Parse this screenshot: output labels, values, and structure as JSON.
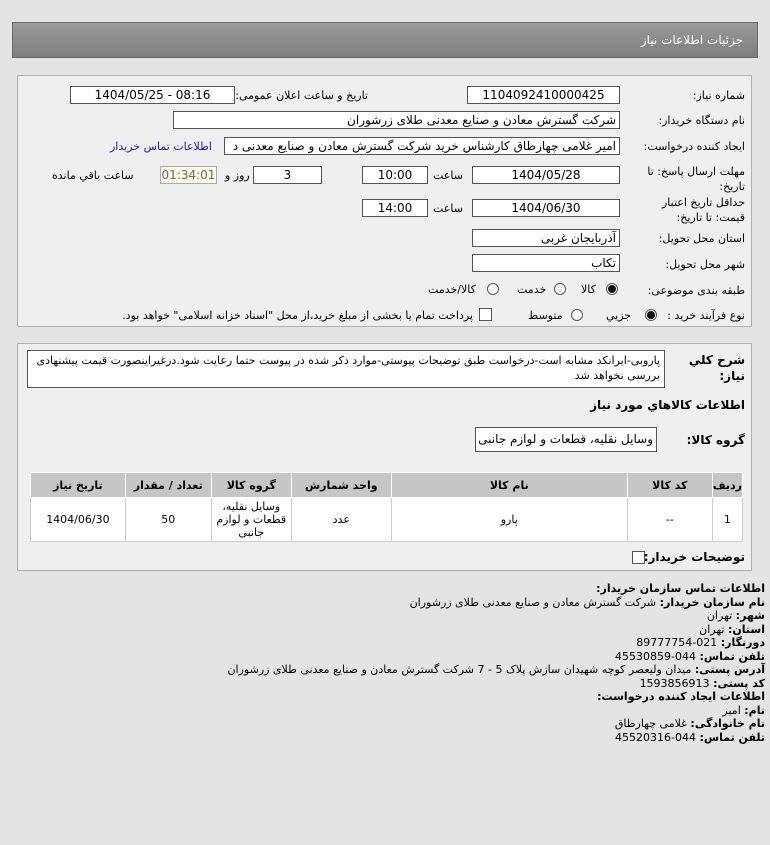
{
  "header": {
    "title": "جزئیات اطلاعات نیاز"
  },
  "form": {
    "need_number_label": "شماره نیاز:",
    "need_number": "1104092410000425",
    "announce_label": "تاریخ و ساعت اعلان عمومی:",
    "announce_value": "1404/05/25 - 08:16",
    "buyer_org_label": "نام دستگاه خریدار:",
    "buyer_org": "شرکت گسترش معادن و صنایع معدنی طلای زرشوران",
    "creator_label": "ایجاد کننده درخواست:",
    "creator": "امیر  غلامی چهارطاق کارشناس خرید شرکت گسترش معادن و صنایع معدنی د",
    "contact_link": "اطلاعات تماس خریدار",
    "deadline_label": "مهلت ارسال پاسخ: تا تاریخ:",
    "deadline_date": "1404/05/28",
    "time_label": "ساعت",
    "deadline_time": "10:00",
    "days": "3",
    "days_label": "روز و",
    "remaining": "01:34:01",
    "remaining_label": "ساعت باقي مانده",
    "validity_label": "حداقل تاریخ اعتبار قیمت: تا تاریخ:",
    "validity_date": "1404/06/30",
    "validity_time": "14:00",
    "province_label": "استان محل تحویل:",
    "province": "آذربایجان غربی",
    "city_label": "شهر محل تحویل:",
    "city": "تکاب",
    "category_label": "طبقه بندی موضوعی:",
    "category_options": [
      "کالا",
      "خدمت",
      "کالا/خدمت"
    ],
    "category_selected": "کالا",
    "process_label": "نوع فرآیند خرید :",
    "process_options": [
      "جزیي",
      "متوسط"
    ],
    "process_selected": "جزیي",
    "treasury_text": "پرداخت تمام یا بخشی از مبلغ خرید،از محل \"اسناد خزانه اسلامی\" خواهد بود."
  },
  "details": {
    "desc_label": "شرح کلي نیاز:",
    "desc": "پاروبی-ایرانکد مشابه است-درخواست طبق توضیحات پیوستی-موارد ذکر شده در پیوست حتما رعایت شود.درغیراینصورت قیمت پیشنهادی بررسی نخواهد شد",
    "goods_title": "اطلاعات کالاهاي مورد نیاز",
    "group_label": "گروه کالا:",
    "group": "وسایل نقلیه، قطعات و لوازم جانبی",
    "table": {
      "headers": [
        "ردیف",
        "کد کالا",
        "نام کالا",
        "واحد شمارش",
        "گروه کالا",
        "تعداد / مقدار",
        "تاریخ نیاز"
      ],
      "rows": [
        [
          "1",
          "--",
          "پارو",
          "عدد",
          "وسایل نقلیه، قطعات و لوازم جانبی",
          "50",
          "1404/06/30"
        ]
      ]
    },
    "buyer_notes_label": "توضیحات خریدار:"
  },
  "contact": {
    "title": "اطلاعات تماس سازمان خریدار:",
    "org_label": "نام سازمان خریدار:",
    "org": "شرکت گسترش معادن و صنایع معدنی طلای زرشوران",
    "city_label": "شهر:",
    "city": "تهران",
    "province_label": "استان:",
    "province": "تهران",
    "fax_label": "دورنگار:",
    "fax": "021-89777754",
    "phone_label": "تلفن تماس:",
    "phone": "044-45530859",
    "address_label": "آدرس پستی:",
    "address": "میدان ولیعصر کوچه شهیدان سازش پلاک 5 - 7 شرکت گسترش معادن و صنایع معدنی طلای زرشوران",
    "postal_label": "کد پستی:",
    "postal": "1593856913",
    "creator_title": "اطلاعات ایجاد کننده درخواست:",
    "name_label": "نام:",
    "name": "امیر",
    "family_label": "نام خانوادگی:",
    "family": "غلامی چهارطاق",
    "creator_phone_label": "تلفن تماس:",
    "creator_phone": "044-45520316"
  }
}
